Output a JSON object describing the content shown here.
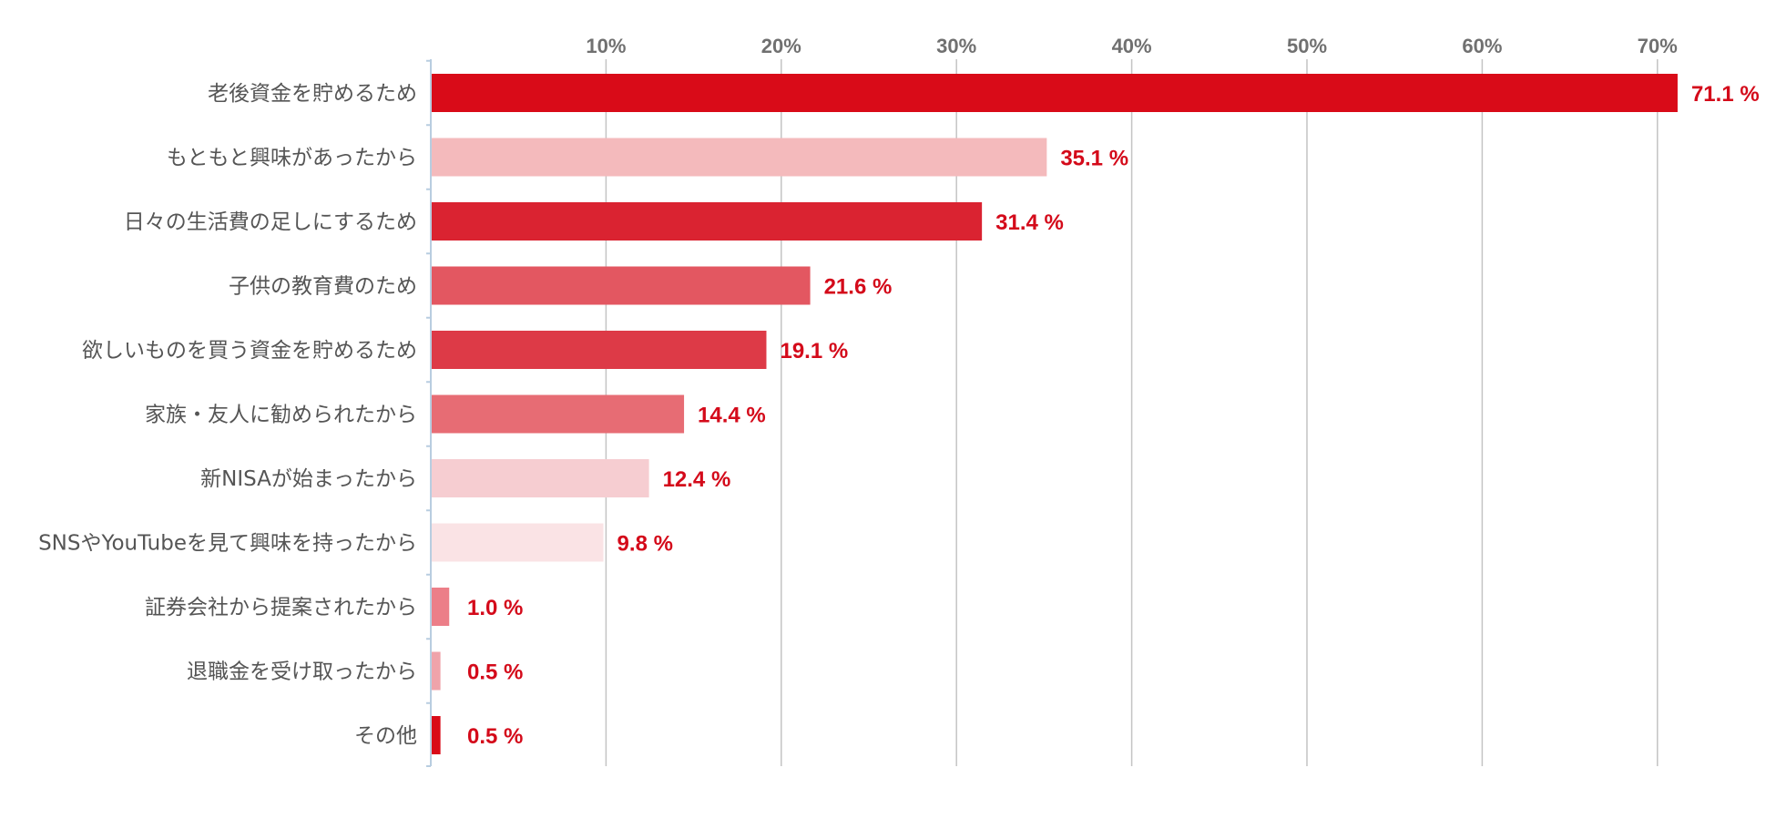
{
  "chart_data": {
    "type": "bar",
    "orientation": "horizontal",
    "title": "",
    "xlabel": "",
    "ylabel": "",
    "xlim": [
      0,
      73
    ],
    "grid": true,
    "ticks": [
      {
        "value": 10,
        "label": "10%"
      },
      {
        "value": 20,
        "label": "20%"
      },
      {
        "value": 30,
        "label": "30%"
      },
      {
        "value": 40,
        "label": "40%"
      },
      {
        "value": 50,
        "label": "50%"
      },
      {
        "value": 60,
        "label": "60%"
      },
      {
        "value": 70,
        "label": "70%"
      }
    ],
    "value_label_color": "#D40A1A",
    "bars": [
      {
        "category": "老後資金を貯めるため",
        "value": 71.1,
        "label": "71.1 %",
        "color": "#D90B18"
      },
      {
        "category": "もともと興味があったから",
        "value": 35.1,
        "label": "35.1 %",
        "color": "#F4BABC"
      },
      {
        "category": "日々の生活費の足しにするため",
        "value": 31.4,
        "label": "31.4 %",
        "color": "#DA2331"
      },
      {
        "category": "子供の教育費のため",
        "value": 21.6,
        "label": "21.6 %",
        "color": "#E35761"
      },
      {
        "category": "欲しいものを買う資金を貯めるため",
        "value": 19.1,
        "label": "19.1 %",
        "color": "#DD3A47"
      },
      {
        "category": "家族・友人に勧められたから",
        "value": 14.4,
        "label": "14.4 %",
        "color": "#E76C74"
      },
      {
        "category": "新NISAが始まったから",
        "value": 12.4,
        "label": "12.4 %",
        "color": "#F6CDD1"
      },
      {
        "category": "SNSやYouTubeを見て興味を持ったから",
        "value": 9.8,
        "label": "9.8 %",
        "color": "#FAE3E5"
      },
      {
        "category": "証券会社から提案されたから",
        "value": 1.0,
        "label": "1.0 %",
        "color": "#EC7E88"
      },
      {
        "category": "退職金を受け取ったから",
        "value": 0.5,
        "label": "0.5 %",
        "color": "#EFA3AA"
      },
      {
        "category": "その他",
        "value": 0.5,
        "label": "0.5 %",
        "color": "#D90B18"
      }
    ]
  }
}
